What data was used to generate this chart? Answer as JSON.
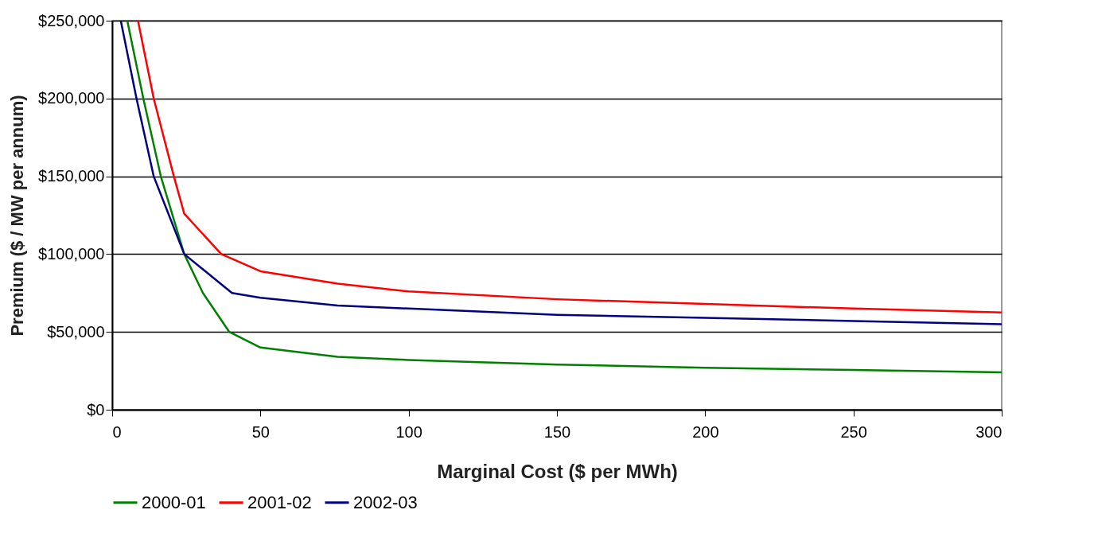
{
  "chart_data": {
    "type": "line",
    "xlabel": "Marginal Cost ($ per MWh)",
    "ylabel": "Premium ($ / MW per annum)",
    "xlim": [
      0,
      300
    ],
    "xticks": [
      0,
      50,
      100,
      150,
      200,
      250,
      300
    ],
    "ylim": [
      0,
      250000
    ],
    "yticks": [
      {
        "value": 0,
        "label": "$0"
      },
      {
        "value": 50000,
        "label": "$50,000"
      },
      {
        "value": 100000,
        "label": "$100,000"
      },
      {
        "value": 150000,
        "label": "$150,000"
      },
      {
        "value": 200000,
        "label": "$200,000"
      },
      {
        "value": 250000,
        "label": "$250,000"
      }
    ],
    "grid": "y",
    "legend": "bottom",
    "marker": "none",
    "line_style": "solid",
    "series": [
      {
        "name": "2000-01",
        "color": "#008000",
        "x": [
          5.1,
          10.5,
          16.4,
          24.3,
          30.6,
          39.5,
          50,
          76,
          100,
          150,
          200,
          250,
          300
        ],
        "values": [
          250000,
          200000,
          150000,
          100000,
          75000,
          50000,
          40000,
          34000,
          32000,
          29000,
          27000,
          25500,
          24000
        ]
      },
      {
        "name": "2001-02",
        "color": "#ff0000",
        "x": [
          8.7,
          14,
          20.8,
          24.3,
          36.8,
          50,
          76,
          100,
          150,
          200,
          250,
          300
        ],
        "values": [
          250000,
          200000,
          150000,
          126000,
          100000,
          89000,
          81000,
          76000,
          71000,
          68000,
          65000,
          62500
        ]
      },
      {
        "name": "2002-03",
        "color": "#000080",
        "x": [
          2.9,
          8.2,
          14,
          24.3,
          40.4,
          50,
          76,
          100,
          150,
          200,
          250,
          300
        ],
        "values": [
          250000,
          200000,
          150000,
          100000,
          75000,
          72000,
          67000,
          65000,
          61000,
          59000,
          57000,
          55000
        ]
      }
    ]
  }
}
